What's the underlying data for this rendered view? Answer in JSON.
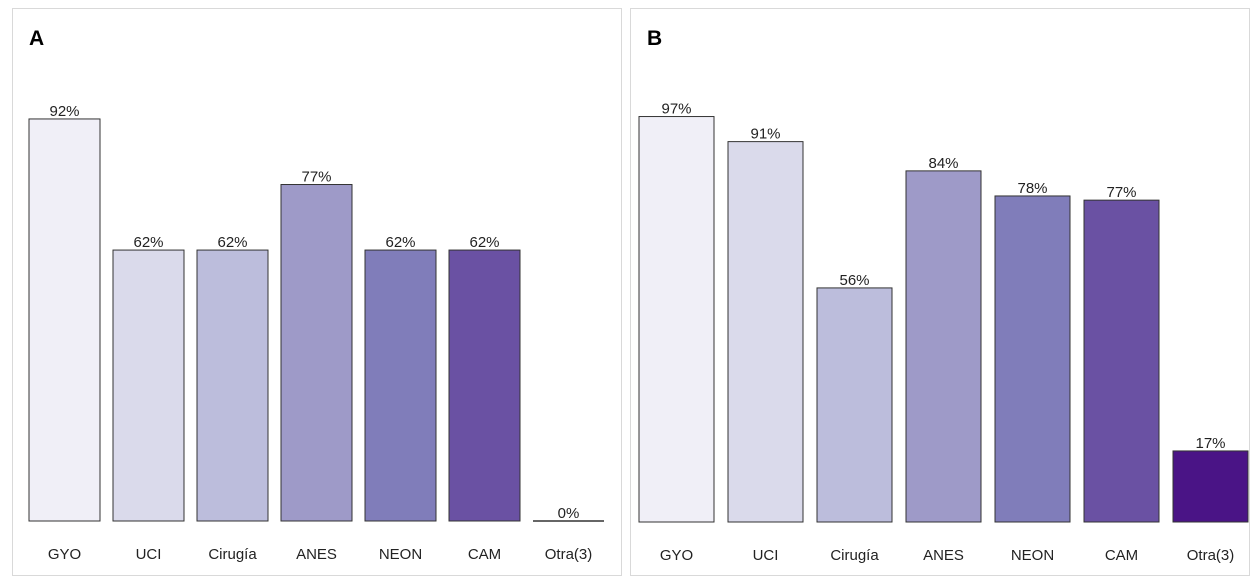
{
  "chart_data": [
    {
      "type": "bar",
      "panel_label": "A",
      "categories": [
        "GYO",
        "UCI",
        "Cirugía",
        "ANES",
        "NEON",
        "CAM",
        "Otra(3)"
      ],
      "values": [
        92,
        62,
        62,
        77,
        62,
        62,
        0
      ],
      "value_labels": [
        "92%",
        "62%",
        "62%",
        "77%",
        "62%",
        "62%",
        "0%"
      ],
      "colors": [
        "#f0eff7",
        "#dadaeb",
        "#bcbddc",
        "#9e9ac8",
        "#807dba",
        "#6a51a3",
        "#54278f"
      ],
      "ylim": [
        0,
        100
      ],
      "grid": false,
      "legend": "none"
    },
    {
      "type": "bar",
      "panel_label": "B",
      "categories": [
        "GYO",
        "UCI",
        "Cirugía",
        "ANES",
        "NEON",
        "CAM",
        "Otra(3)"
      ],
      "values": [
        97,
        91,
        56,
        84,
        78,
        77,
        17
      ],
      "value_labels": [
        "97%",
        "91%",
        "56%",
        "84%",
        "78%",
        "77%",
        "17%"
      ],
      "colors": [
        "#f0eff7",
        "#dadaeb",
        "#bcbddc",
        "#9e9ac8",
        "#807dba",
        "#6a51a3",
        "#4a1486"
      ],
      "ylim": [
        0,
        100
      ],
      "grid": false,
      "legend": "none"
    }
  ]
}
